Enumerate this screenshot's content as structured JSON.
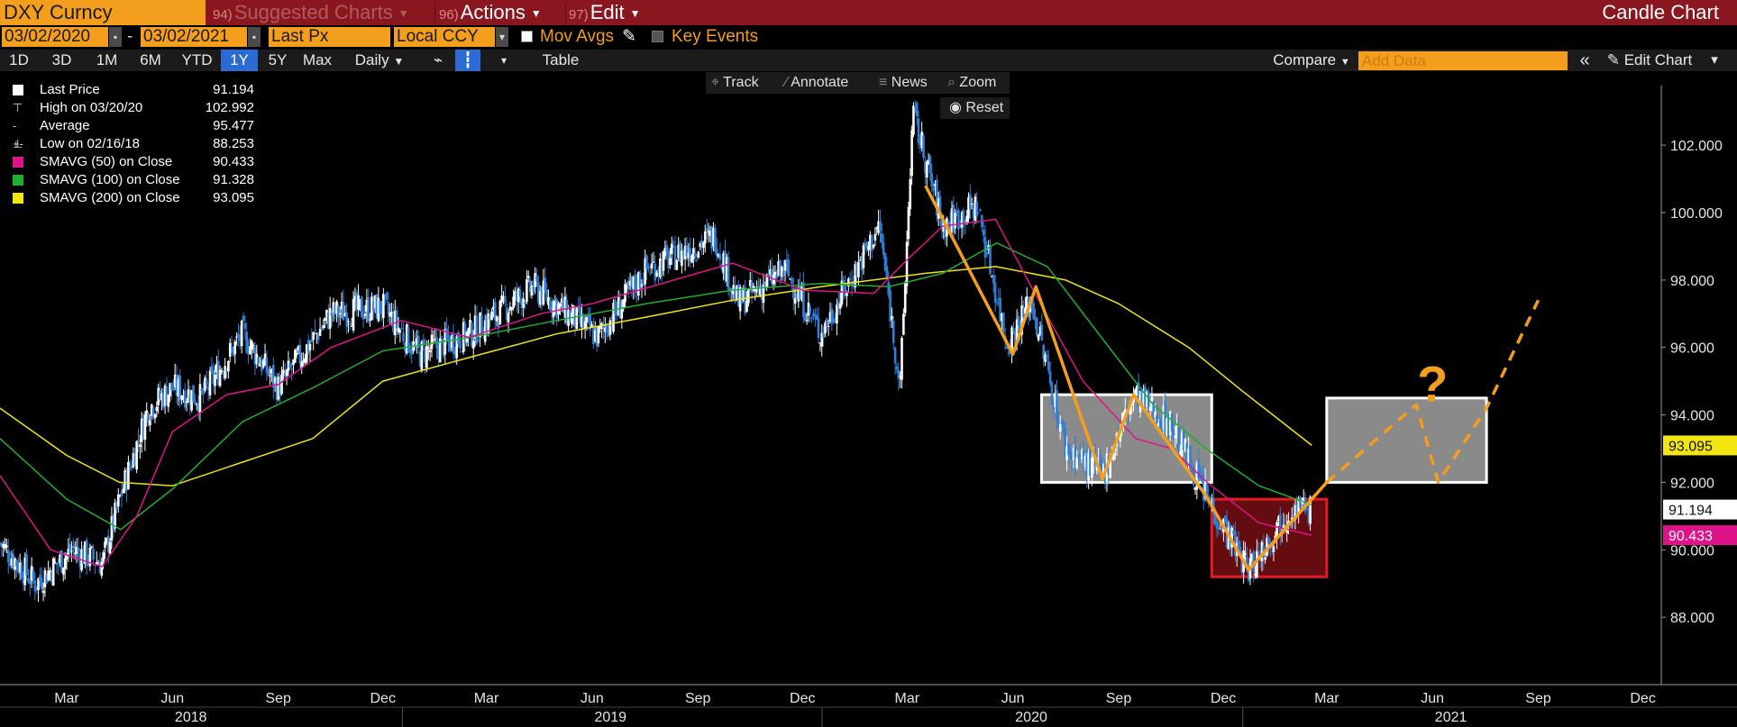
{
  "toolbar": {
    "ticker": "DXY Curncy",
    "suggested_num": "94)",
    "suggested": "Suggested Charts",
    "actions_num": "96)",
    "actions": "Actions",
    "edit_num": "97)",
    "edit": "Edit",
    "chart_title": "Candle Chart"
  },
  "controls": {
    "start_date": "03/02/2020",
    "end_date": "03/02/2021",
    "price_field": "Last Px",
    "currency": "Local CCY",
    "mov_avgs": "Mov Avgs",
    "key_events": "Key Events"
  },
  "periods": [
    "1D",
    "3D",
    "1M",
    "6M",
    "YTD",
    "1Y",
    "5Y",
    "Max"
  ],
  "selected_period": "1Y",
  "frequency": "Daily",
  "table_label": "Table",
  "compare_label": "Compare",
  "add_data_placeholder": "Add Data",
  "edit_chart_label": "Edit Chart",
  "tools": {
    "track": "Track",
    "annotate": "Annotate",
    "news": "News",
    "zoom": "Zoom",
    "reset": "Reset"
  },
  "legend": [
    {
      "name": "Last Price",
      "value": "91.194",
      "color": "#ffffff",
      "glyph": "box"
    },
    {
      "name": "High on 03/20/20",
      "value": "102.992",
      "color": "#cfcfcf",
      "glyph": "high"
    },
    {
      "name": "Average",
      "value": "95.477",
      "color": "#cfcfcf",
      "glyph": "avg"
    },
    {
      "name": "Low on 02/16/18",
      "value": "88.253",
      "color": "#cfcfcf",
      "glyph": "low"
    },
    {
      "name": "SMAVG (50)  on Close",
      "value": "90.433",
      "color": "#e0128a",
      "glyph": "box"
    },
    {
      "name": "SMAVG (100)  on Close",
      "value": "91.328",
      "color": "#1fae2e",
      "glyph": "box"
    },
    {
      "name": "SMAVG (200)  on Close",
      "value": "93.095",
      "color": "#f2e512",
      "glyph": "box"
    }
  ],
  "chart_data": {
    "type": "candlestick",
    "x_range": [
      "2018-01-16",
      "2021-12-31"
    ],
    "ylim": [
      86,
      103.5
    ],
    "y_ticks": [
      "88.000",
      "90.000",
      "92.000",
      "94.000",
      "96.000",
      "98.000",
      "100.000",
      "102.000"
    ],
    "x_month_labels": [
      {
        "label": "Mar",
        "date": "2018-03-15"
      },
      {
        "label": "Jun",
        "date": "2018-06-15"
      },
      {
        "label": "Sep",
        "date": "2018-09-15"
      },
      {
        "label": "Dec",
        "date": "2018-12-15"
      },
      {
        "label": "Mar",
        "date": "2019-03-15"
      },
      {
        "label": "Jun",
        "date": "2019-06-15"
      },
      {
        "label": "Sep",
        "date": "2019-09-15"
      },
      {
        "label": "Dec",
        "date": "2019-12-15"
      },
      {
        "label": "Mar",
        "date": "2020-03-15"
      },
      {
        "label": "Jun",
        "date": "2020-06-15"
      },
      {
        "label": "Sep",
        "date": "2020-09-15"
      },
      {
        "label": "Dec",
        "date": "2020-12-15"
      },
      {
        "label": "Mar",
        "date": "2021-03-15"
      },
      {
        "label": "Jun",
        "date": "2021-06-15"
      },
      {
        "label": "Sep",
        "date": "2021-09-15"
      },
      {
        "label": "Dec",
        "date": "2021-12-15"
      }
    ],
    "x_year_labels": [
      {
        "label": "2018",
        "date": "2018-07-01"
      },
      {
        "label": "2019",
        "date": "2019-07-01"
      },
      {
        "label": "2020",
        "date": "2020-07-01"
      },
      {
        "label": "2021",
        "date": "2021-07-01"
      }
    ],
    "price_path": [
      [
        "2018-01-16",
        90.2
      ],
      [
        "2018-02-16",
        89.0
      ],
      [
        "2018-03-20",
        90.0
      ],
      [
        "2018-04-15",
        89.6
      ],
      [
        "2018-05-01",
        91.6
      ],
      [
        "2018-05-25",
        94.2
      ],
      [
        "2018-06-15",
        94.8
      ],
      [
        "2018-07-10",
        94.5
      ],
      [
        "2018-08-15",
        96.4
      ],
      [
        "2018-09-15",
        94.8
      ],
      [
        "2018-10-31",
        97.0
      ],
      [
        "2018-12-15",
        97.2
      ],
      [
        "2019-01-15",
        95.8
      ],
      [
        "2019-03-01",
        96.4
      ],
      [
        "2019-04-25",
        97.8
      ],
      [
        "2019-06-20",
        96.3
      ],
      [
        "2019-08-01",
        98.3
      ],
      [
        "2019-09-30",
        99.3
      ],
      [
        "2019-10-20",
        97.3
      ],
      [
        "2019-11-30",
        98.3
      ],
      [
        "2019-12-31",
        96.4
      ],
      [
        "2020-02-20",
        99.6
      ],
      [
        "2020-03-09",
        94.8
      ],
      [
        "2020-03-20",
        102.99
      ],
      [
        "2020-04-15",
        99.6
      ],
      [
        "2020-05-15",
        100.2
      ],
      [
        "2020-06-10",
        96.1
      ],
      [
        "2020-07-01",
        97.4
      ],
      [
        "2020-07-31",
        93.0
      ],
      [
        "2020-09-01",
        92.2
      ],
      [
        "2020-09-28",
        94.6
      ],
      [
        "2020-10-31",
        93.7
      ],
      [
        "2020-11-30",
        91.6
      ],
      [
        "2021-01-06",
        89.4
      ],
      [
        "2021-02-10",
        91.2
      ],
      [
        "2021-03-02",
        91.194
      ]
    ],
    "sma50": [
      [
        "2018-01-16",
        92.2
      ],
      [
        "2018-03-01",
        90.0
      ],
      [
        "2018-04-15",
        89.5
      ],
      [
        "2018-05-15",
        91.0
      ],
      [
        "2018-06-15",
        93.5
      ],
      [
        "2018-08-01",
        94.6
      ],
      [
        "2018-09-15",
        94.9
      ],
      [
        "2018-10-31",
        96.0
      ],
      [
        "2018-12-31",
        96.8
      ],
      [
        "2019-02-28",
        96.3
      ],
      [
        "2019-05-01",
        97.0
      ],
      [
        "2019-06-15",
        97.3
      ],
      [
        "2019-08-15",
        97.9
      ],
      [
        "2019-10-15",
        98.5
      ],
      [
        "2019-12-15",
        97.7
      ],
      [
        "2020-02-15",
        97.6
      ],
      [
        "2020-03-15",
        98.6
      ],
      [
        "2020-04-15",
        99.6
      ],
      [
        "2020-05-31",
        99.8
      ],
      [
        "2020-07-01",
        97.8
      ],
      [
        "2020-08-15",
        95.0
      ],
      [
        "2020-09-30",
        93.3
      ],
      [
        "2020-10-31",
        93.0
      ],
      [
        "2020-12-01",
        92.0
      ],
      [
        "2021-01-15",
        90.8
      ],
      [
        "2021-03-02",
        90.433
      ]
    ],
    "sma100": [
      [
        "2018-01-16",
        93.3
      ],
      [
        "2018-03-15",
        91.5
      ],
      [
        "2018-05-01",
        90.6
      ],
      [
        "2018-06-15",
        91.8
      ],
      [
        "2018-08-15",
        93.8
      ],
      [
        "2018-10-15",
        94.8
      ],
      [
        "2018-12-15",
        95.9
      ],
      [
        "2019-03-01",
        96.3
      ],
      [
        "2019-05-15",
        96.8
      ],
      [
        "2019-08-01",
        97.3
      ],
      [
        "2019-10-15",
        97.7
      ],
      [
        "2019-12-31",
        97.9
      ],
      [
        "2020-02-28",
        97.8
      ],
      [
        "2020-04-15",
        98.2
      ],
      [
        "2020-06-01",
        99.1
      ],
      [
        "2020-07-15",
        98.4
      ],
      [
        "2020-08-31",
        96.3
      ],
      [
        "2020-10-15",
        94.3
      ],
      [
        "2020-11-30",
        93.0
      ],
      [
        "2021-01-15",
        91.9
      ],
      [
        "2021-03-02",
        91.328
      ]
    ],
    "sma200": [
      [
        "2018-01-16",
        94.2
      ],
      [
        "2018-03-15",
        92.8
      ],
      [
        "2018-04-30",
        92.0
      ],
      [
        "2018-06-15",
        91.9
      ],
      [
        "2018-08-15",
        92.6
      ],
      [
        "2018-10-15",
        93.3
      ],
      [
        "2018-12-15",
        95.0
      ],
      [
        "2019-02-28",
        95.7
      ],
      [
        "2019-05-15",
        96.4
      ],
      [
        "2019-08-01",
        96.9
      ],
      [
        "2019-10-15",
        97.4
      ],
      [
        "2019-12-31",
        97.8
      ],
      [
        "2020-03-31",
        98.2
      ],
      [
        "2020-05-31",
        98.4
      ],
      [
        "2020-07-31",
        98.0
      ],
      [
        "2020-09-15",
        97.3
      ],
      [
        "2020-11-15",
        96.0
      ],
      [
        "2021-01-01",
        94.7
      ],
      [
        "2021-03-02",
        93.095
      ]
    ],
    "last_price_tag": {
      "value": 91.194,
      "label": "91.194"
    },
    "sma50_tag": {
      "value": 90.433,
      "label": "90.433"
    },
    "sma200_tag": {
      "value": 93.095,
      "label": "93.095"
    },
    "annotations": {
      "pattern_line": [
        [
          "2020-03-31",
          100.8
        ],
        [
          "2020-06-15",
          95.8
        ],
        [
          "2020-07-05",
          97.8
        ],
        [
          "2020-09-01",
          92.1
        ],
        [
          "2020-09-28",
          94.6
        ],
        [
          "2020-11-30",
          91.6
        ],
        [
          "2021-01-06",
          89.4
        ],
        [
          "2021-03-15",
          92.0
        ]
      ],
      "projection_line": [
        [
          "2021-03-15",
          92.0
        ],
        [
          "2021-06-01",
          94.3
        ],
        [
          "2021-06-20",
          92.0
        ],
        [
          "2021-08-01",
          94.2
        ],
        [
          "2021-09-15",
          97.4
        ]
      ],
      "boxes": [
        {
          "color": "#bfbfbf",
          "border": "#ffffff",
          "x0": "2020-07-10",
          "x1": "2020-12-05",
          "y0": 92.0,
          "y1": 94.6
        },
        {
          "color": "#8b1016",
          "border": "#e41b23",
          "x0": "2020-12-05",
          "x1": "2021-03-15",
          "y0": 89.2,
          "y1": 91.5
        },
        {
          "color": "#bfbfbf",
          "border": "#ffffff",
          "x0": "2021-03-15",
          "x1": "2021-08-01",
          "y0": 92.0,
          "y1": 94.5
        }
      ],
      "question_mark": {
        "text": "?",
        "date": "2021-06-15",
        "value": 94.4
      }
    }
  }
}
